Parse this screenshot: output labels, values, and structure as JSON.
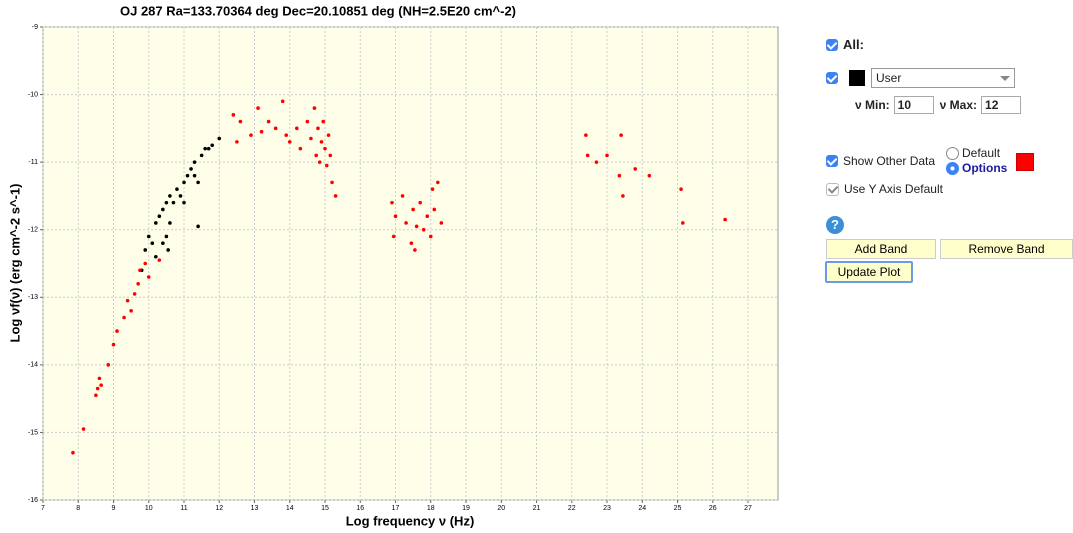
{
  "chart_data": {
    "type": "scatter",
    "title": "OJ 287 Ra=133.70364 deg Dec=20.10851 deg (NH=2.5E20 cm^-2)",
    "x_label": "Log frequency ν (Hz)",
    "y_label": "Log νf(ν) (erg cm^-2 s^-1)",
    "xlim": [
      7,
      27.85
    ],
    "ylim": [
      -16,
      -9
    ],
    "xticks": [
      7,
      8,
      9,
      10,
      11,
      12,
      13,
      14,
      15,
      16,
      17,
      18,
      19,
      20,
      21,
      22,
      23,
      24,
      25,
      26,
      27
    ],
    "yticks": [
      -16,
      -15,
      -14,
      -13,
      -12,
      -11,
      -10,
      -9
    ],
    "grid": true,
    "background": "#fffee8",
    "series": [
      {
        "color": "#000000",
        "x": [
          9.8,
          9.9,
          10.0,
          10.1,
          10.2,
          10.3,
          10.4,
          10.5,
          10.5,
          10.6,
          10.6,
          10.7,
          10.8,
          10.9,
          11.0,
          11.0,
          11.1,
          11.2,
          11.3,
          11.3,
          11.4,
          11.5,
          11.6,
          11.7,
          11.8,
          12.0,
          11.4,
          10.55,
          10.4,
          10.2
        ],
        "values": [
          -12.6,
          -12.3,
          -12.1,
          -12.2,
          -11.9,
          -11.8,
          -11.7,
          -12.1,
          -11.6,
          -11.9,
          -11.5,
          -11.6,
          -11.4,
          -11.5,
          -11.3,
          -11.6,
          -11.2,
          -11.1,
          -11.2,
          -11.0,
          -11.3,
          -10.9,
          -10.8,
          -10.8,
          -10.75,
          -10.65,
          -11.95,
          -12.3,
          -12.2,
          -12.4
        ]
      },
      {
        "color": "#ff0000",
        "x": [
          7.85,
          8.15,
          8.5,
          8.55,
          8.6,
          8.65,
          8.85,
          9.0,
          9.1,
          9.3,
          9.4,
          9.5,
          9.6,
          9.7,
          9.75,
          9.9,
          10.0,
          10.3,
          12.4,
          12.5,
          12.6,
          12.9,
          13.1,
          13.2,
          13.4,
          13.6,
          13.8,
          13.9,
          14.0,
          14.2,
          14.3,
          14.5,
          14.6,
          14.7,
          14.75,
          14.8,
          14.85,
          14.9,
          14.95,
          15.0,
          15.05,
          15.1,
          15.15,
          15.2,
          15.3,
          16.9,
          16.95,
          17.0,
          17.2,
          17.3,
          17.45,
          17.5,
          17.55,
          17.6,
          17.7,
          17.8,
          17.9,
          18.0,
          18.05,
          18.1,
          18.2,
          18.3,
          22.4,
          22.45,
          22.7,
          23.0,
          23.35,
          23.4,
          23.45,
          23.8,
          24.2,
          25.1,
          25.15,
          26.35
        ],
        "values": [
          -15.3,
          -14.95,
          -14.45,
          -14.35,
          -14.2,
          -14.3,
          -14.0,
          -13.7,
          -13.5,
          -13.3,
          -13.05,
          -13.2,
          -12.95,
          -12.8,
          -12.6,
          -12.5,
          -12.7,
          -12.45,
          -10.3,
          -10.7,
          -10.4,
          -10.6,
          -10.2,
          -10.55,
          -10.4,
          -10.5,
          -10.1,
          -10.6,
          -10.7,
          -10.5,
          -10.8,
          -10.4,
          -10.65,
          -10.2,
          -10.9,
          -10.5,
          -11.0,
          -10.7,
          -10.4,
          -10.8,
          -11.05,
          -10.6,
          -10.9,
          -11.3,
          -11.5,
          -11.6,
          -12.1,
          -11.8,
          -11.5,
          -11.9,
          -12.2,
          -11.7,
          -12.3,
          -11.95,
          -11.6,
          -12.0,
          -11.8,
          -12.1,
          -11.4,
          -11.7,
          -11.3,
          -11.9,
          -10.6,
          -10.9,
          -11.0,
          -10.9,
          -11.2,
          -10.6,
          -11.5,
          -11.1,
          -11.2,
          -11.4,
          -11.9,
          -11.85
        ]
      }
    ]
  },
  "controls": {
    "all_label": "All:",
    "user_select": "User",
    "nu_min_label": "ν Min:",
    "nu_min": "10",
    "nu_max_label": "ν Max:",
    "nu_max": "12",
    "show_other": "Show Other Data",
    "radio_default": "Default",
    "radio_options": "Options",
    "use_y_default": "Use Y Axis Default",
    "help_icon": "?",
    "add_band": "Add Band",
    "remove_band": "Remove Band",
    "update_plot": "Update Plot"
  }
}
